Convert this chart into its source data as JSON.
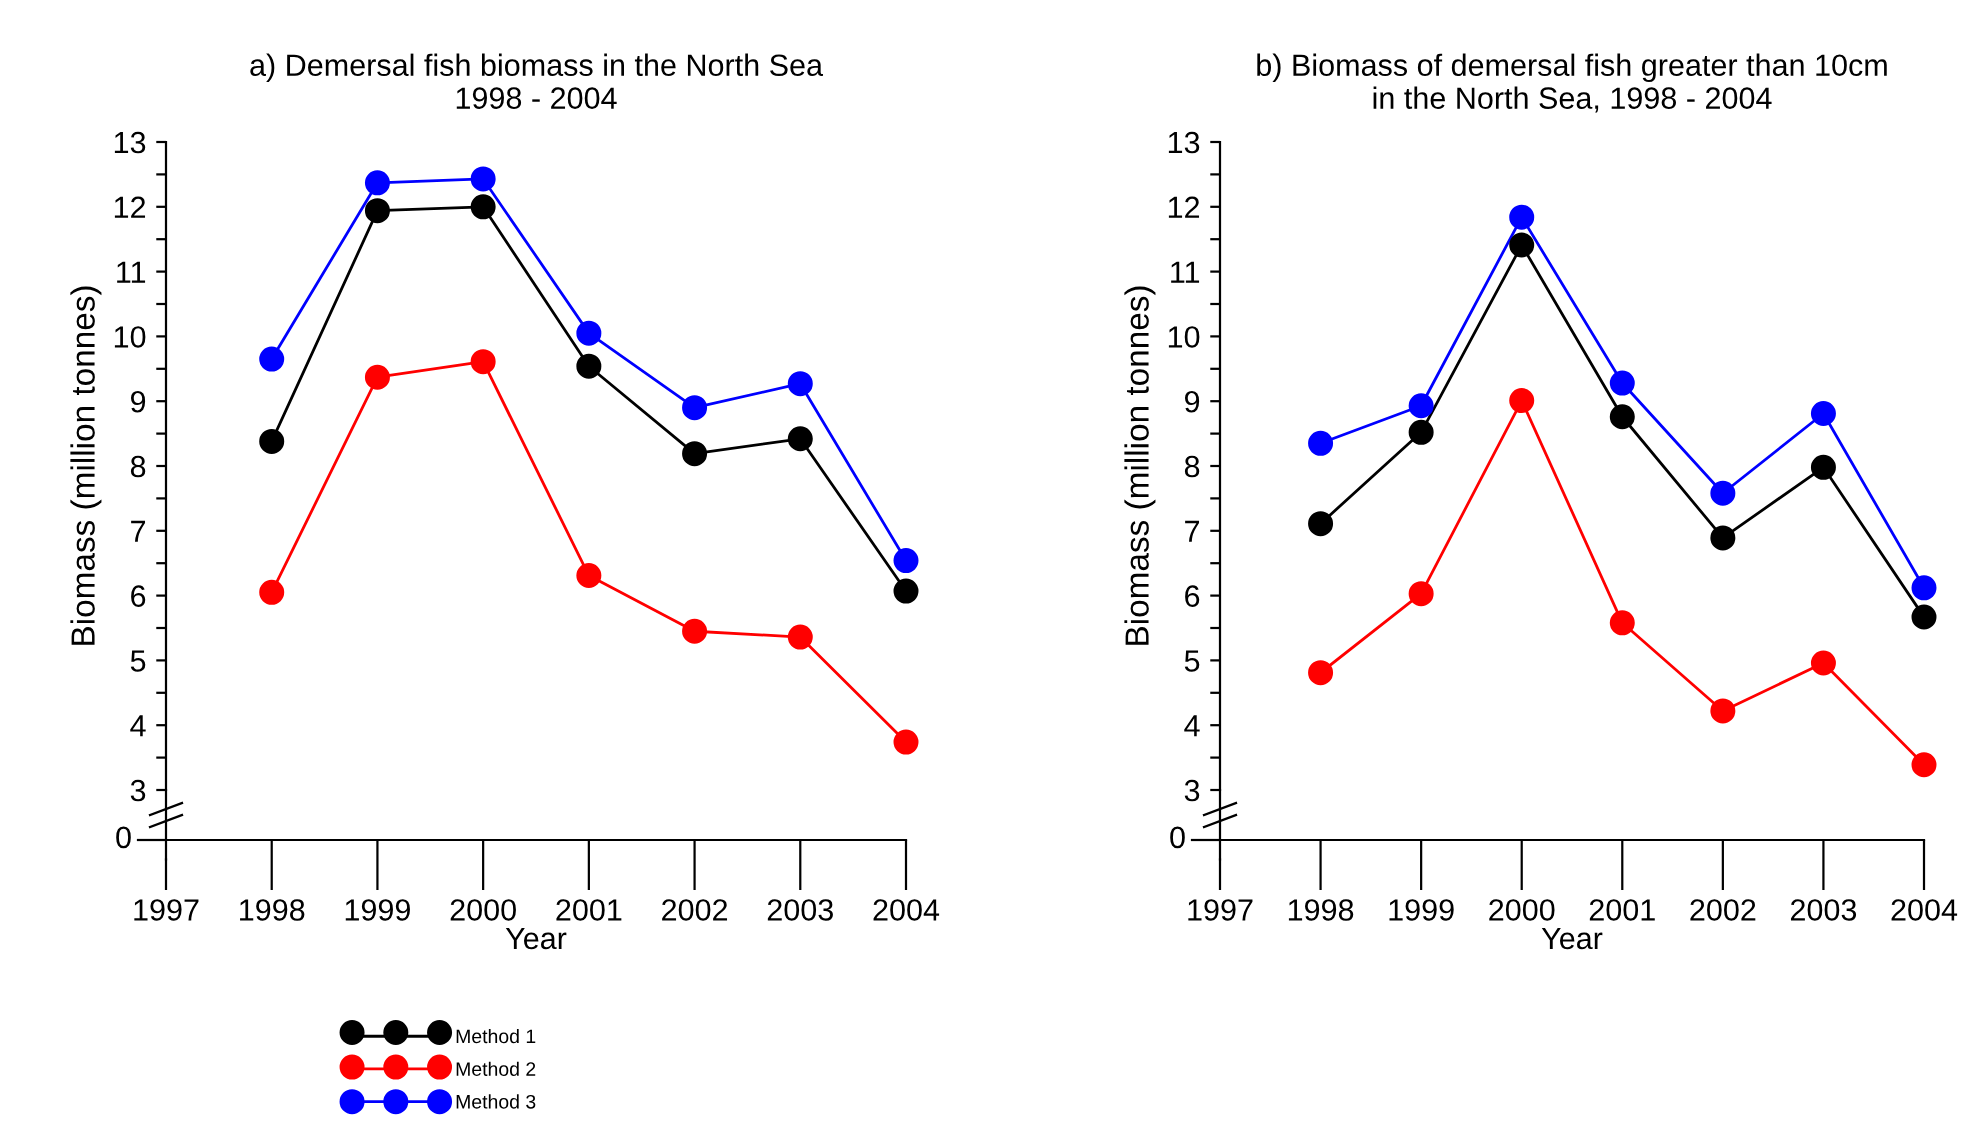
{
  "chart_data": [
    {
      "type": "line",
      "title": "a) Demersal fish biomass in the North Sea\n1998 - 2004",
      "xlabel": "Year",
      "ylabel": "Biomass (million tonnes)",
      "annotations": [
        "0"
      ],
      "x": [
        1998,
        1999,
        2000,
        2001,
        2002,
        2003,
        2004
      ],
      "series": [
        {
          "name": "Method 1",
          "color": "#000000",
          "values": [
            8.38,
            11.94,
            12.0,
            9.54,
            8.19,
            8.42,
            6.07
          ]
        },
        {
          "name": "Method 2",
          "color": "#ff0000",
          "values": [
            6.05,
            9.37,
            9.61,
            6.31,
            5.45,
            5.36,
            3.74
          ]
        },
        {
          "name": "Method 3",
          "color": "#0000ff",
          "values": [
            9.65,
            12.37,
            12.43,
            10.05,
            8.9,
            9.27,
            6.54
          ]
        }
      ],
      "xlim": [
        1997,
        2004
      ],
      "xticks": [
        1997,
        1998,
        1999,
        2000,
        2001,
        2002,
        2003,
        2004
      ],
      "ylim": [
        3,
        13
      ],
      "yticks": [
        3,
        {
          "value": 3.5,
          "label": null
        },
        4,
        {
          "value": 4.5,
          "label": null
        },
        5,
        {
          "value": 5.5,
          "label": null
        },
        6,
        {
          "value": 6.5,
          "label": null
        },
        7,
        {
          "value": 7.5,
          "label": null
        },
        8,
        {
          "value": 8.5,
          "label": null
        },
        9,
        {
          "value": 9.5,
          "label": null
        },
        10,
        {
          "value": 10.5,
          "label": null
        },
        11,
        {
          "value": 11.5,
          "label": null
        },
        12,
        {
          "value": 12.5,
          "label": null
        },
        13
      ],
      "marker": "circle",
      "line_style": "solid",
      "legend": "bottom"
    },
    {
      "type": "line",
      "title": "b) Biomass of demersal fish greater than 10cm\nin the North Sea, 1998 - 2004",
      "xlabel": "Year",
      "ylabel": "Biomass (million tonnes)",
      "annotations": [
        "0"
      ],
      "x": [
        1998,
        1999,
        2000,
        2001,
        2002,
        2003,
        2004
      ],
      "series": [
        {
          "color": "#000000",
          "values": [
            7.11,
            8.52,
            11.41,
            8.76,
            6.89,
            7.98,
            5.67
          ]
        },
        {
          "color": "#ff0000",
          "values": [
            4.81,
            6.03,
            9.01,
            5.58,
            4.22,
            4.96,
            3.39
          ]
        },
        {
          "color": "#0000ff",
          "values": [
            8.35,
            8.93,
            11.84,
            9.28,
            7.58,
            8.81,
            6.12
          ]
        }
      ],
      "xlim": [
        1997,
        2004
      ],
      "xticks": [
        1997,
        1998,
        1999,
        2000,
        2001,
        2002,
        2003,
        2004
      ],
      "ylim": [
        3,
        13
      ],
      "yticks": [
        3,
        {
          "value": 3.5,
          "label": null
        },
        4,
        {
          "value": 4.5,
          "label": null
        },
        5,
        {
          "value": 5.5,
          "label": null
        },
        6,
        {
          "value": 6.5,
          "label": null
        },
        7,
        {
          "value": 7.5,
          "label": null
        },
        8,
        {
          "value": 8.5,
          "label": null
        },
        9,
        {
          "value": 9.5,
          "label": null
        },
        10,
        {
          "value": 10.5,
          "label": null
        },
        11,
        {
          "value": 11.5,
          "label": null
        },
        12,
        {
          "value": 12.5,
          "label": null
        },
        13
      ],
      "marker": "circle",
      "line_style": "solid"
    }
  ]
}
